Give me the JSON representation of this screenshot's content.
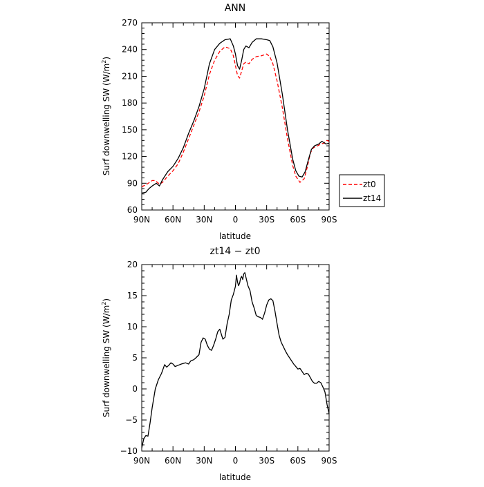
{
  "chart_data": [
    {
      "type": "line",
      "title": "ANN",
      "xlabel": "latitude",
      "ylabel": "Surf downwelling SW (W/m²)",
      "ylabel_parts": {
        "main": "Surf downwelling SW  (W/m",
        "sup": "2",
        "end": ")"
      },
      "xlim": [
        90,
        -90
      ],
      "ylim": [
        60,
        270
      ],
      "x_ticks": [
        90,
        60,
        30,
        0,
        -30,
        -60,
        -90
      ],
      "x_tick_labels": [
        "90N",
        "60N",
        "30N",
        "0",
        "30S",
        "60S",
        "90S"
      ],
      "y_ticks": [
        60,
        90,
        120,
        150,
        180,
        210,
        240,
        270
      ],
      "y_tick_labels": [
        "60",
        "90",
        "120",
        "150",
        "180",
        "210",
        "240",
        "270"
      ],
      "legend": {
        "position": "right-outside",
        "entries": [
          "zt0",
          "zt14"
        ]
      },
      "grid": false,
      "series": [
        {
          "name": "zt0",
          "color": "#ff0000",
          "dash": "dashed",
          "points": [
            [
              90,
              86
            ],
            [
              85,
              89
            ],
            [
              80,
              93
            ],
            [
              77,
              93
            ],
            [
              73,
              89
            ],
            [
              70,
              91
            ],
            [
              65,
              98
            ],
            [
              60,
              104
            ],
            [
              55,
              112
            ],
            [
              50,
              125
            ],
            [
              45,
              140
            ],
            [
              40,
              155
            ],
            [
              35,
              170
            ],
            [
              30,
              188
            ],
            [
              25,
              212
            ],
            [
              20,
              228
            ],
            [
              15,
              238
            ],
            [
              10,
              243
            ],
            [
              5,
              241
            ],
            [
              2,
              233
            ],
            [
              0,
              222
            ],
            [
              -2,
              211
            ],
            [
              -4,
              208
            ],
            [
              -6,
              216
            ],
            [
              -8,
              224
            ],
            [
              -10,
              226
            ],
            [
              -13,
              224
            ],
            [
              -16,
              229
            ],
            [
              -20,
              232
            ],
            [
              -25,
              233
            ],
            [
              -30,
              235
            ],
            [
              -33,
              232
            ],
            [
              -36,
              224
            ],
            [
              -40,
              205
            ],
            [
              -45,
              175
            ],
            [
              -50,
              140
            ],
            [
              -55,
              110
            ],
            [
              -58,
              98
            ],
            [
              -62,
              91
            ],
            [
              -66,
              95
            ],
            [
              -69,
              108
            ],
            [
              -72,
              124
            ],
            [
              -75,
              130
            ],
            [
              -79,
              132
            ],
            [
              -82,
              134
            ],
            [
              -85,
              135
            ],
            [
              -88,
              138
            ],
            [
              -90,
              137
            ]
          ]
        },
        {
          "name": "zt14",
          "color": "#000000",
          "dash": "solid",
          "points": [
            [
              90,
              79
            ],
            [
              86,
              80
            ],
            [
              83,
              84
            ],
            [
              80,
              87
            ],
            [
              76,
              90
            ],
            [
              73,
              87
            ],
            [
              70,
              94
            ],
            [
              65,
              103
            ],
            [
              60,
              109
            ],
            [
              55,
              118
            ],
            [
              50,
              130
            ],
            [
              45,
              146
            ],
            [
              40,
              160
            ],
            [
              35,
              176
            ],
            [
              30,
              196
            ],
            [
              25,
              224
            ],
            [
              20,
              240
            ],
            [
              15,
              247
            ],
            [
              10,
              251
            ],
            [
              5,
              252
            ],
            [
              2,
              244
            ],
            [
              0,
              235
            ],
            [
              -2,
              222
            ],
            [
              -4,
              218
            ],
            [
              -6,
              228
            ],
            [
              -8,
              240
            ],
            [
              -10,
              244
            ],
            [
              -13,
              242
            ],
            [
              -16,
              248
            ],
            [
              -20,
              252
            ],
            [
              -25,
              252
            ],
            [
              -30,
              251
            ],
            [
              -33,
              250
            ],
            [
              -36,
              243
            ],
            [
              -40,
              225
            ],
            [
              -45,
              190
            ],
            [
              -50,
              150
            ],
            [
              -55,
              117
            ],
            [
              -58,
              104
            ],
            [
              -61,
              98
            ],
            [
              -64,
              97
            ],
            [
              -67,
              103
            ],
            [
              -70,
              116
            ],
            [
              -73,
              128
            ],
            [
              -76,
              132
            ],
            [
              -80,
              134
            ],
            [
              -83,
              137
            ],
            [
              -87,
              134
            ],
            [
              -90,
              135
            ]
          ]
        }
      ]
    },
    {
      "type": "line",
      "title": "zt14 − zt0",
      "xlabel": "latitude",
      "ylabel": "Surf downwelling SW (W/m²)",
      "ylabel_parts": {
        "main": "Surf downwelling SW  (W/m",
        "sup": "2",
        "end": ")"
      },
      "xlim": [
        90,
        -90
      ],
      "ylim": [
        -10,
        20
      ],
      "x_ticks": [
        90,
        60,
        30,
        0,
        -30,
        -60,
        -90
      ],
      "x_tick_labels": [
        "90N",
        "60N",
        "30N",
        "0",
        "30S",
        "60S",
        "90S"
      ],
      "y_ticks": [
        -10,
        -5,
        0,
        5,
        10,
        15,
        20
      ],
      "y_tick_labels": [
        "−10",
        "−5",
        "0",
        "5",
        "10",
        "15",
        "20"
      ],
      "grid": false,
      "series": [
        {
          "color": "#000000",
          "dash": "solid",
          "points": [
            [
              90,
              -9.5
            ],
            [
              88,
              -8
            ],
            [
              86,
              -7.5
            ],
            [
              84,
              -7.6
            ],
            [
              82,
              -5.5
            ],
            [
              80,
              -3
            ],
            [
              77,
              0
            ],
            [
              74,
              1.5
            ],
            [
              71,
              2.5
            ],
            [
              68,
              3.9
            ],
            [
              66,
              3.5
            ],
            [
              64,
              3.8
            ],
            [
              62,
              4.2
            ],
            [
              60,
              4.0
            ],
            [
              58,
              3.6
            ],
            [
              55,
              3.8
            ],
            [
              52,
              4.0
            ],
            [
              48,
              4.2
            ],
            [
              45,
              4.0
            ],
            [
              43,
              4.5
            ],
            [
              40,
              4.7
            ],
            [
              38,
              5.0
            ],
            [
              35,
              5.5
            ],
            [
              33,
              7.5
            ],
            [
              31,
              8.2
            ],
            [
              29,
              8.0
            ],
            [
              27,
              7.0
            ],
            [
              25,
              6.4
            ],
            [
              23,
              6.2
            ],
            [
              21,
              7.0
            ],
            [
              19,
              8.0
            ],
            [
              17,
              9.2
            ],
            [
              15,
              9.6
            ],
            [
              13,
              8.5
            ],
            [
              12,
              8.0
            ],
            [
              10,
              8.3
            ],
            [
              8,
              10.5
            ],
            [
              6,
              12
            ],
            [
              4,
              14.3
            ],
            [
              2,
              15.2
            ],
            [
              0,
              16.5
            ],
            [
              -1,
              18.3
            ],
            [
              -2,
              17.2
            ],
            [
              -3,
              16.6
            ],
            [
              -4,
              17.0
            ],
            [
              -5,
              17.8
            ],
            [
              -6,
              18.1
            ],
            [
              -7,
              17.6
            ],
            [
              -8,
              18.5
            ],
            [
              -9,
              18.7
            ],
            [
              -10,
              18.0
            ],
            [
              -11,
              17.3
            ],
            [
              -12,
              16.6
            ],
            [
              -14,
              15.8
            ],
            [
              -16,
              14.0
            ],
            [
              -18,
              13.0
            ],
            [
              -20,
              11.8
            ],
            [
              -22,
              11.6
            ],
            [
              -24,
              11.5
            ],
            [
              -26,
              11.2
            ],
            [
              -28,
              12.2
            ],
            [
              -30,
              13.5
            ],
            [
              -32,
              14.3
            ],
            [
              -34,
              14.5
            ],
            [
              -36,
              14.2
            ],
            [
              -38,
              12.5
            ],
            [
              -40,
              10.5
            ],
            [
              -42,
              8.6
            ],
            [
              -44,
              7.5
            ],
            [
              -46,
              6.8
            ],
            [
              -48,
              6.1
            ],
            [
              -50,
              5.5
            ],
            [
              -52,
              5.0
            ],
            [
              -54,
              4.5
            ],
            [
              -56,
              4.0
            ],
            [
              -58,
              3.6
            ],
            [
              -60,
              3.2
            ],
            [
              -62,
              3.3
            ],
            [
              -64,
              2.8
            ],
            [
              -66,
              2.3
            ],
            [
              -68,
              2.5
            ],
            [
              -70,
              2.4
            ],
            [
              -72,
              1.8
            ],
            [
              -74,
              1.2
            ],
            [
              -76,
              0.9
            ],
            [
              -78,
              0.9
            ],
            [
              -80,
              1.2
            ],
            [
              -82,
              1.0
            ],
            [
              -84,
              0.3
            ],
            [
              -86,
              -0.5
            ],
            [
              -88,
              -2.5
            ],
            [
              -90,
              -4.0
            ]
          ]
        }
      ]
    }
  ]
}
